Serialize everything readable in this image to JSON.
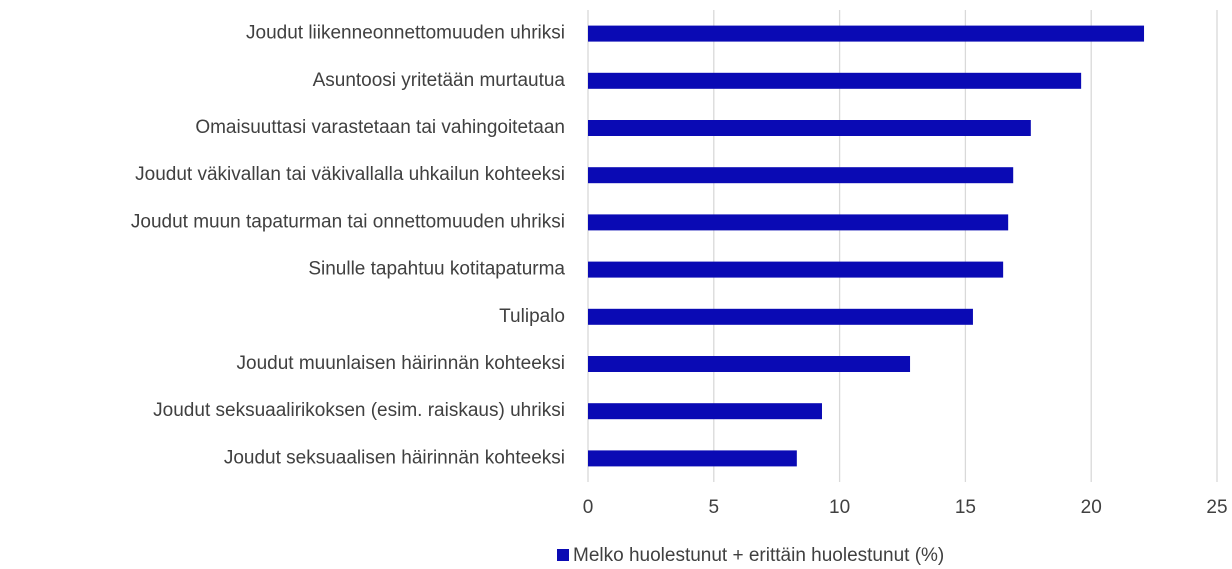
{
  "chart_data": {
    "type": "bar",
    "orientation": "horizontal",
    "categories": [
      "Joudut liikenneonnettomuuden uhriksi",
      "Asuntoosi yritetään murtautua",
      "Omaisuuttasi varastetaan tai vahingoitetaan",
      "Joudut väkivallan tai väkivallalla uhkailun kohteeksi",
      "Joudut muun tapaturman tai onnettomuuden uhriksi",
      "Sinulle tapahtuu kotitapaturma",
      "Tulipalo",
      "Joudut muunlaisen häirinnän kohteeksi",
      "Joudut seksuaalirikoksen (esim. raiskaus) uhriksi",
      "Joudut seksuaalisen häirinnän kohteeksi"
    ],
    "series": [
      {
        "name": "Melko huolestunut + erittäin huolestunut (%)",
        "color": "#0a0ab4",
        "values": [
          22.1,
          19.6,
          17.6,
          16.9,
          16.7,
          16.5,
          15.3,
          12.8,
          9.3,
          8.3
        ]
      }
    ],
    "xlim": [
      0,
      25
    ],
    "xticks": [
      0,
      5,
      10,
      15,
      20,
      25
    ],
    "grid": true,
    "legend": "bottom"
  }
}
